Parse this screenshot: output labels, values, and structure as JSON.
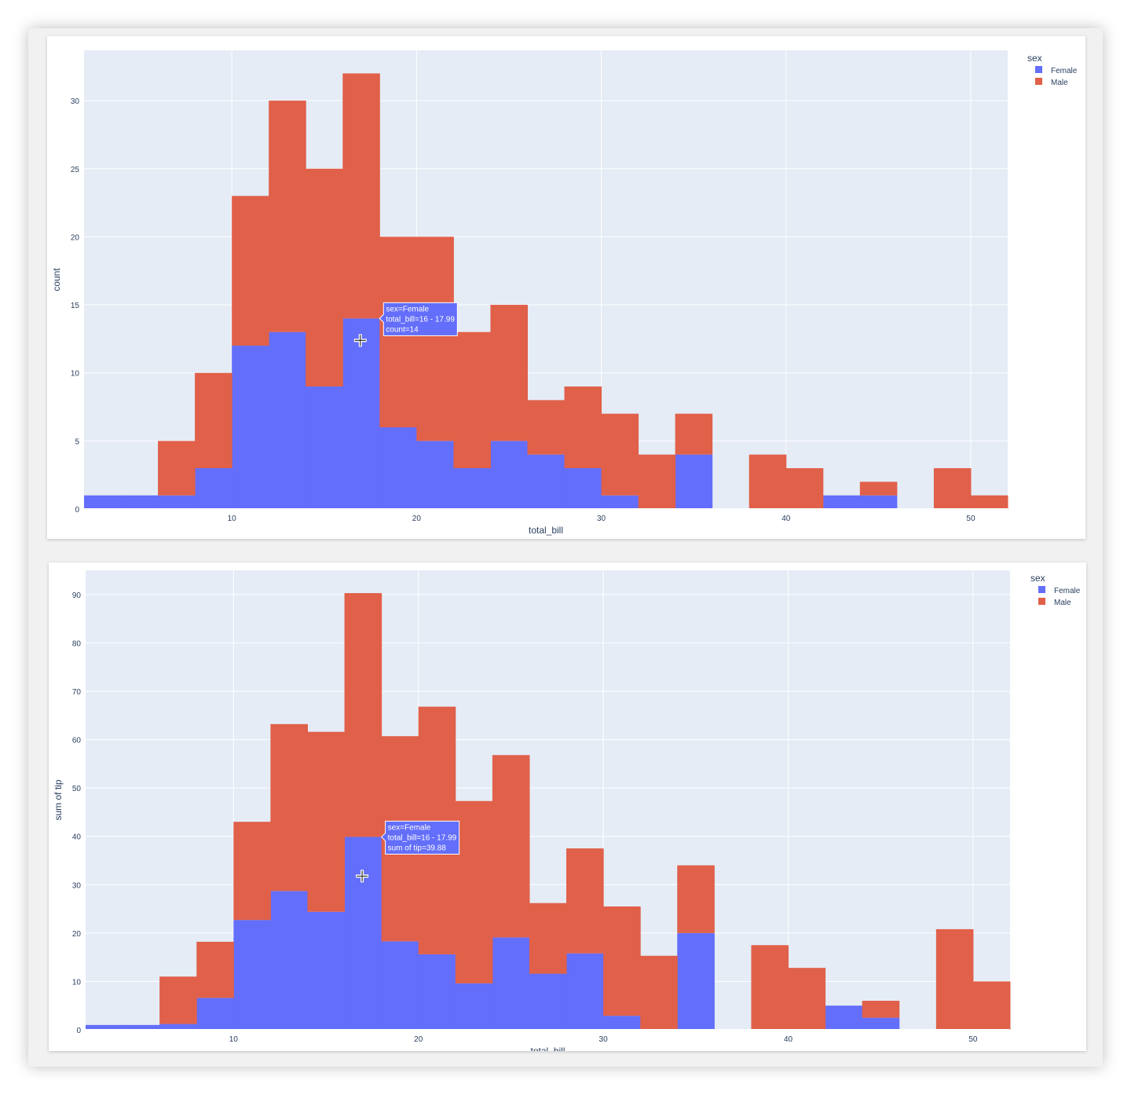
{
  "colors": {
    "female": "#636efa",
    "male": "#e0604a",
    "plot_bg": "#e5ecf6",
    "axis_text": "#2a3f5f"
  },
  "chart_data": [
    {
      "type": "bar",
      "barmode": "stack",
      "bin_edges": [
        2,
        4,
        6,
        8,
        10,
        12,
        14,
        16,
        18,
        20,
        22,
        24,
        26,
        28,
        30,
        32,
        34,
        36,
        38,
        40,
        42,
        44,
        46,
        48,
        50,
        52
      ],
      "series": [
        {
          "name": "Female",
          "values": [
            1,
            1,
            1,
            3,
            12,
            13,
            9,
            14,
            6,
            5,
            3,
            5,
            4,
            3,
            1,
            0,
            4,
            0,
            0,
            0,
            1,
            1,
            0,
            0,
            0
          ]
        },
        {
          "name": "Male",
          "values": [
            0,
            0,
            4,
            7,
            11,
            17,
            16,
            18,
            14,
            15,
            10,
            10,
            4,
            6,
            6,
            4,
            3,
            0,
            4,
            3,
            0,
            1,
            0,
            3,
            1
          ]
        }
      ],
      "xlabel": "total_bill",
      "ylabel": "count",
      "xlim": [
        2,
        52
      ],
      "ylim": [
        0,
        33.7
      ],
      "x_ticks": [
        10,
        20,
        30,
        40,
        50
      ],
      "y_ticks": [
        0,
        5,
        10,
        15,
        20,
        25,
        30
      ],
      "grid": true,
      "legend": {
        "title": "sex",
        "items": [
          "Female",
          "Male"
        ],
        "placement": "top-right"
      },
      "hover": {
        "lines": [
          "sex=Female",
          "total_bill=16 - 17.99",
          "count=14"
        ],
        "series": 0,
        "bin": 7
      }
    },
    {
      "type": "bar",
      "barmode": "stack",
      "bin_edges": [
        2,
        4,
        6,
        8,
        10,
        12,
        14,
        16,
        18,
        20,
        22,
        24,
        26,
        28,
        30,
        32,
        34,
        36,
        38,
        40,
        42,
        44,
        46,
        48,
        50,
        52
      ],
      "series": [
        {
          "name": "Female",
          "values": [
            1,
            1,
            1.2,
            6.6,
            22.7,
            28.7,
            24.4,
            39.88,
            18.3,
            15.6,
            9.6,
            19.1,
            11.6,
            15.8,
            2.9,
            0,
            20,
            0,
            0,
            0,
            5,
            2.5,
            0,
            0,
            0
          ]
        },
        {
          "name": "Male",
          "values": [
            0,
            0,
            9.8,
            11.6,
            20.3,
            34.5,
            37.2,
            50.4,
            42.4,
            51.2,
            37.7,
            37.7,
            14.6,
            21.7,
            22.6,
            15.3,
            14,
            0,
            17.5,
            12.8,
            0,
            3.5,
            0,
            20.8,
            10
          ]
        }
      ],
      "xlabel": "total_bill",
      "ylabel": "sum of tip",
      "xlim": [
        2,
        52
      ],
      "ylim": [
        0,
        95
      ],
      "x_ticks": [
        10,
        20,
        30,
        40,
        50
      ],
      "y_ticks": [
        0,
        10,
        20,
        30,
        40,
        50,
        60,
        70,
        80,
        90
      ],
      "grid": true,
      "legend": {
        "title": "sex",
        "items": [
          "Female",
          "Male"
        ],
        "placement": "top-right"
      },
      "hover": {
        "lines": [
          "sex=Female",
          "total_bill=16 - 17.99",
          "sum of tip=39.88"
        ],
        "series": 0,
        "bin": 7
      }
    }
  ]
}
